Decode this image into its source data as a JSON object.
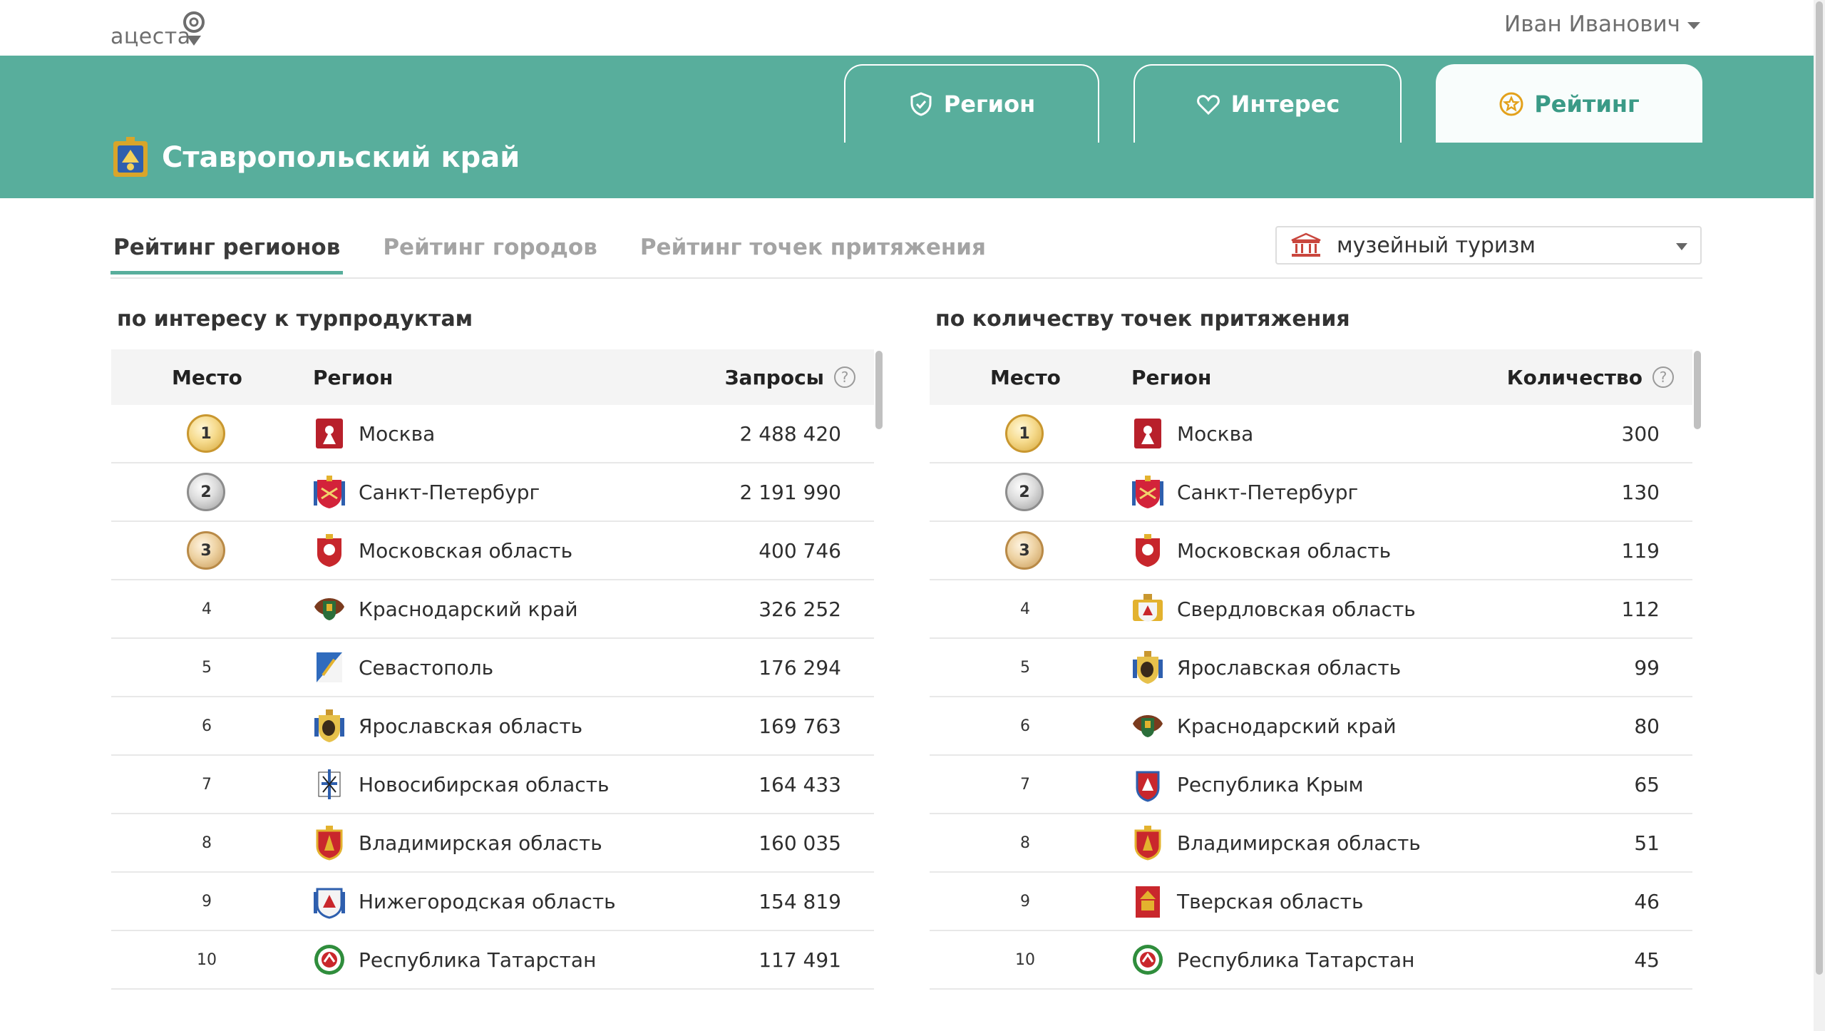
{
  "app": {
    "logo_text": "ацеста",
    "user_name": "Иван Иванович"
  },
  "header": {
    "region_title": "Ставропольский край",
    "tabs": [
      {
        "label": "Регион",
        "icon": "shield-check-icon",
        "active": false
      },
      {
        "label": "Интерес",
        "icon": "heart-icon",
        "active": false
      },
      {
        "label": "Рейтинг",
        "icon": "star-badge-icon",
        "active": true
      }
    ]
  },
  "subtabs": [
    "Рейтинг регионов",
    "Рейтинг городов",
    "Рейтинг точек притяжения"
  ],
  "filter": {
    "icon": "museum-icon",
    "value": "музейный туризм"
  },
  "colors": {
    "accent": "#58ae9c",
    "active_tab_text": "#3a9a86"
  },
  "left_table": {
    "title": "по интересу к турпродуктам",
    "col_place": "Место",
    "col_region": "Регион",
    "col_value": "Запросы",
    "rows": [
      {
        "place": "1",
        "region": "Москва",
        "value": "2 488 420",
        "coa": "moscow"
      },
      {
        "place": "2",
        "region": "Санкт-Петербург",
        "value": "2 191 990",
        "coa": "spb"
      },
      {
        "place": "3",
        "region": "Московская область",
        "value": "400 746",
        "coa": "mosobl"
      },
      {
        "place": "4",
        "region": "Краснодарский край",
        "value": "326 252",
        "coa": "krasnodar"
      },
      {
        "place": "5",
        "region": "Севастополь",
        "value": "176 294",
        "coa": "sevastopol"
      },
      {
        "place": "6",
        "region": "Ярославская область",
        "value": "169 763",
        "coa": "yaroslavl"
      },
      {
        "place": "7",
        "region": "Новосибирская область",
        "value": "164 433",
        "coa": "novosib"
      },
      {
        "place": "8",
        "region": "Владимирская область",
        "value": "160 035",
        "coa": "vladimir"
      },
      {
        "place": "9",
        "region": "Нижегородская область",
        "value": "154 819",
        "coa": "nizhny"
      },
      {
        "place": "10",
        "region": "Республика Татарстан",
        "value": "117 491",
        "coa": "tatarstan"
      }
    ]
  },
  "right_table": {
    "title": "по количеству точек притяжения",
    "col_place": "Место",
    "col_region": "Регион",
    "col_value": "Количество",
    "rows": [
      {
        "place": "1",
        "region": "Москва",
        "value": "300",
        "coa": "moscow"
      },
      {
        "place": "2",
        "region": "Санкт-Петербург",
        "value": "130",
        "coa": "spb"
      },
      {
        "place": "3",
        "region": "Московская область",
        "value": "119",
        "coa": "mosobl"
      },
      {
        "place": "4",
        "region": "Свердловская область",
        "value": "112",
        "coa": "sverdlovsk"
      },
      {
        "place": "5",
        "region": "Ярославская область",
        "value": "99",
        "coa": "yaroslavl"
      },
      {
        "place": "6",
        "region": "Краснодарский край",
        "value": "80",
        "coa": "krasnodar"
      },
      {
        "place": "7",
        "region": "Республика Крым",
        "value": "65",
        "coa": "crimea"
      },
      {
        "place": "8",
        "region": "Владимирская область",
        "value": "51",
        "coa": "vladimir"
      },
      {
        "place": "9",
        "region": "Тверская область",
        "value": "46",
        "coa": "tver"
      },
      {
        "place": "10",
        "region": "Республика Татарстан",
        "value": "45",
        "coa": "tatarstan"
      }
    ]
  }
}
